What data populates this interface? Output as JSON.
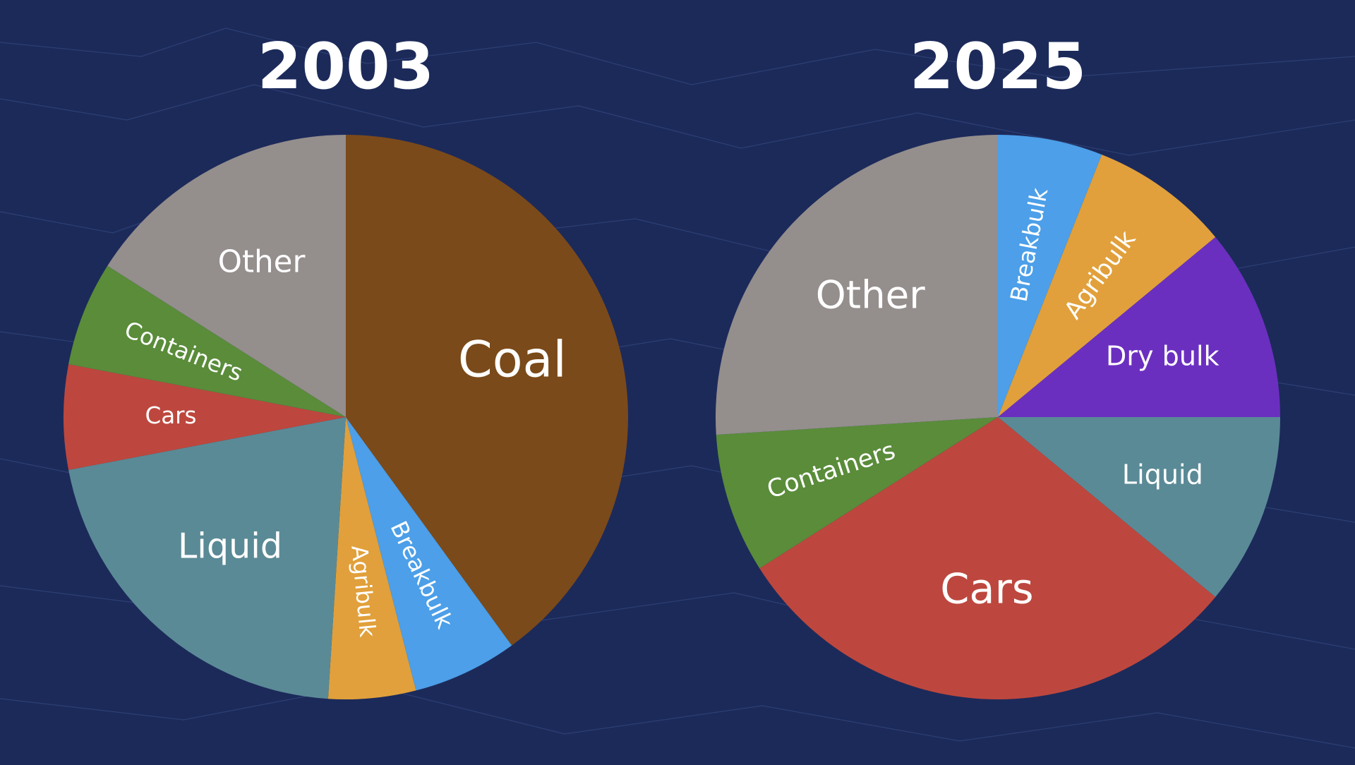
{
  "chart_data": [
    {
      "type": "pie",
      "title": "2003",
      "categories": [
        "Coal",
        "Breakbulk",
        "Agribulk",
        "Liquid",
        "Cars",
        "Containers",
        "Other"
      ],
      "values": [
        40,
        6,
        5,
        21,
        6,
        6,
        16
      ],
      "colors": [
        "#7b4a1a",
        "#4c9fe8",
        "#e1a03b",
        "#5a8a96",
        "#bd473e",
        "#5a8c3a",
        "#948e8d"
      ]
    },
    {
      "type": "pie",
      "title": "2025",
      "categories": [
        "Breakbulk",
        "Agribulk",
        "Dry bulk",
        "Liquid",
        "Cars",
        "Containers",
        "Other"
      ],
      "values": [
        6,
        8,
        11,
        11,
        30,
        8,
        26
      ],
      "colors": [
        "#4c9fe8",
        "#e1a03b",
        "#6b2fc0",
        "#5a8a96",
        "#bd473e",
        "#5a8c3a",
        "#948e8d"
      ]
    }
  ]
}
